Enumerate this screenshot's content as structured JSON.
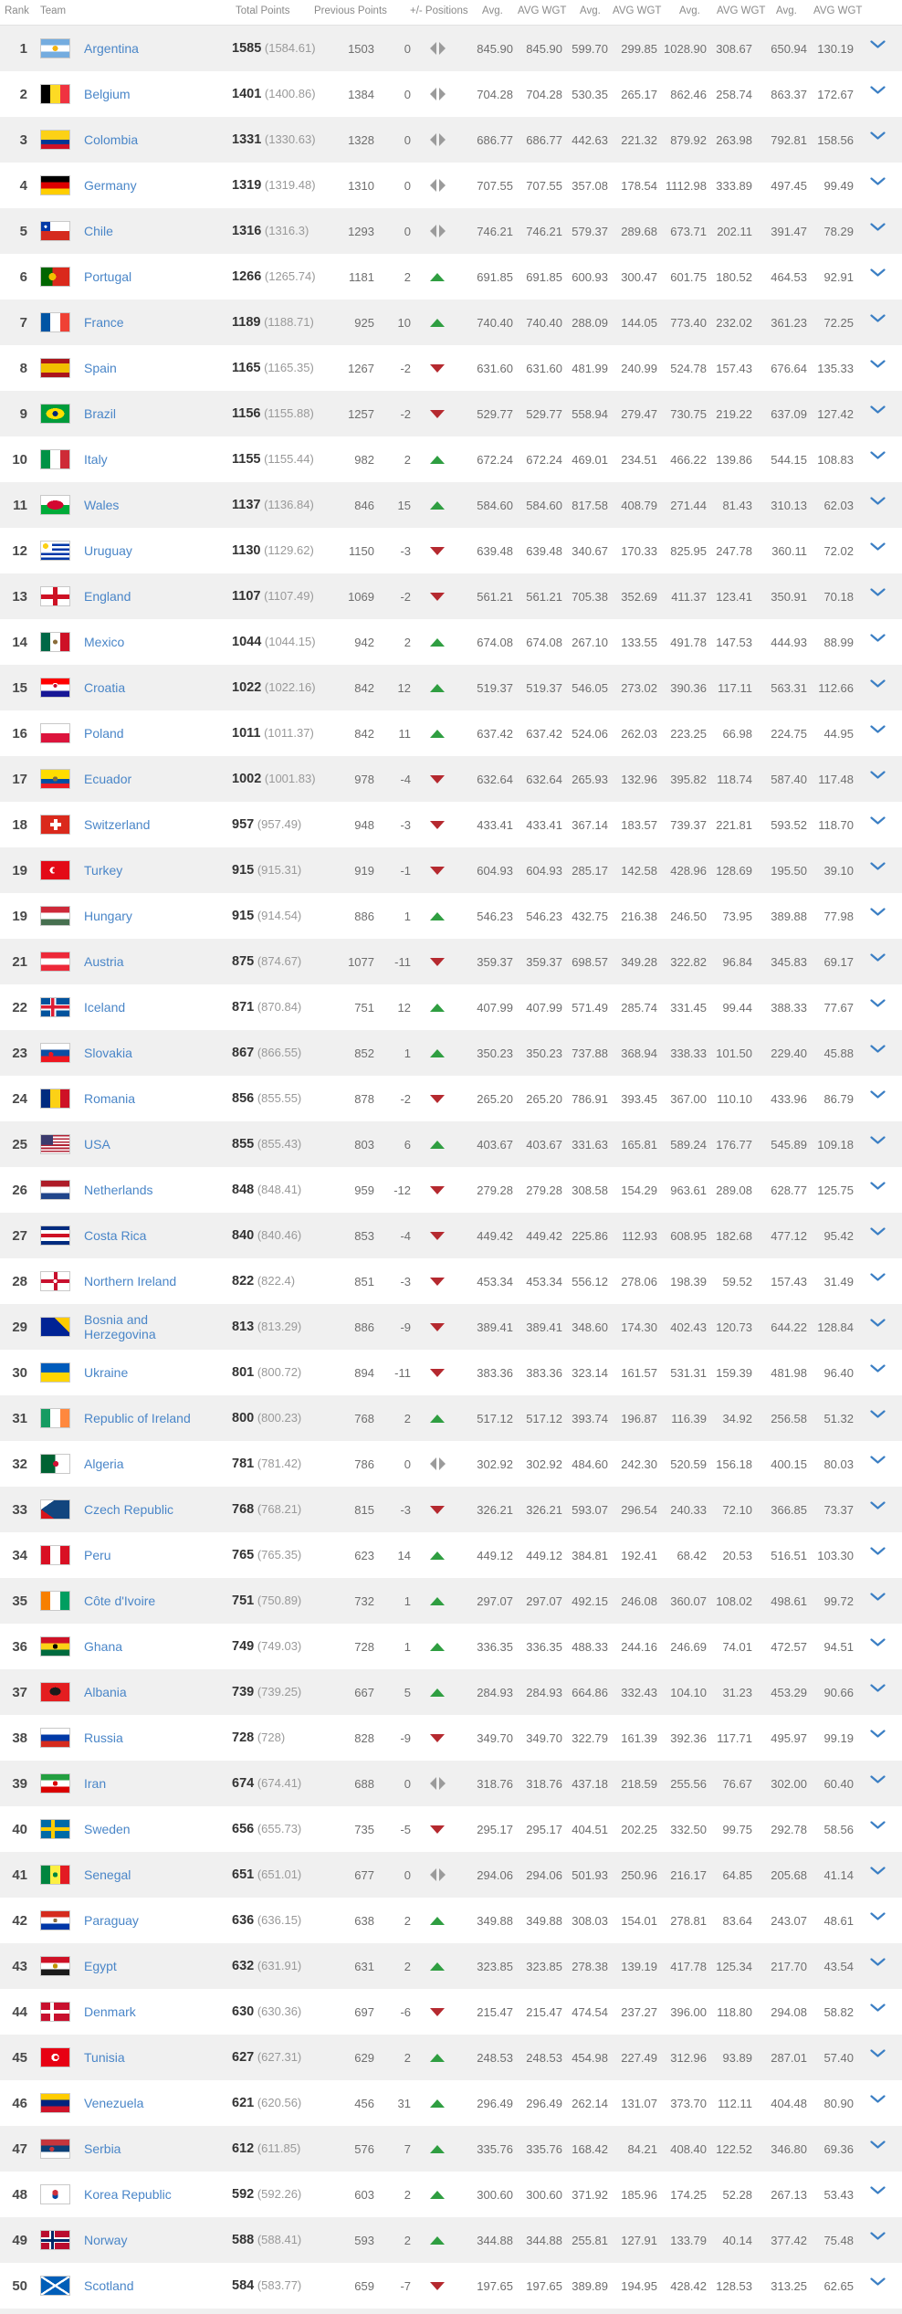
{
  "header": {
    "rank": "Rank",
    "team": "Team",
    "total_points": "Total Points",
    "previous_points": "Previous Points",
    "positions": "+/- Positions",
    "stat_columns": [
      "Avg.",
      "AVG WGT",
      "Avg.",
      "AVG WGT",
      "Avg.",
      "AVG WGT",
      "Avg.",
      "AVG WGT"
    ]
  },
  "colors": {
    "link_blue": "#4a86c8",
    "up_green": "#2f9e41",
    "down_red": "#b5292f",
    "neutral_grey": "#9b9b9b",
    "chevron_blue": "#3b7fc4",
    "row_alt_bg": "#f0f0f0"
  },
  "rows": [
    {
      "rank": "1",
      "team": "Argentina",
      "total_points": "1585",
      "total_points_average": "(1584.61)",
      "previous_points": "1503",
      "change": "0",
      "trend": "same",
      "stats": [
        "845.90",
        "845.90",
        "599.70",
        "299.85",
        "1028.90",
        "308.67",
        "650.94",
        "130.19"
      ]
    },
    {
      "rank": "2",
      "team": "Belgium",
      "total_points": "1401",
      "total_points_average": "(1400.86)",
      "previous_points": "1384",
      "change": "0",
      "trend": "same",
      "stats": [
        "704.28",
        "704.28",
        "530.35",
        "265.17",
        "862.46",
        "258.74",
        "863.37",
        "172.67"
      ]
    },
    {
      "rank": "3",
      "team": "Colombia",
      "total_points": "1331",
      "total_points_average": "(1330.63)",
      "previous_points": "1328",
      "change": "0",
      "trend": "same",
      "stats": [
        "686.77",
        "686.77",
        "442.63",
        "221.32",
        "879.92",
        "263.98",
        "792.81",
        "158.56"
      ]
    },
    {
      "rank": "4",
      "team": "Germany",
      "total_points": "1319",
      "total_points_average": "(1319.48)",
      "previous_points": "1310",
      "change": "0",
      "trend": "same",
      "stats": [
        "707.55",
        "707.55",
        "357.08",
        "178.54",
        "1112.98",
        "333.89",
        "497.45",
        "99.49"
      ]
    },
    {
      "rank": "5",
      "team": "Chile",
      "total_points": "1316",
      "total_points_average": "(1316.3)",
      "previous_points": "1293",
      "change": "0",
      "trend": "same",
      "stats": [
        "746.21",
        "746.21",
        "579.37",
        "289.68",
        "673.71",
        "202.11",
        "391.47",
        "78.29"
      ]
    },
    {
      "rank": "6",
      "team": "Portugal",
      "total_points": "1266",
      "total_points_average": "(1265.74)",
      "previous_points": "1181",
      "change": "2",
      "trend": "up",
      "stats": [
        "691.85",
        "691.85",
        "600.93",
        "300.47",
        "601.75",
        "180.52",
        "464.53",
        "92.91"
      ]
    },
    {
      "rank": "7",
      "team": "France",
      "total_points": "1189",
      "total_points_average": "(1188.71)",
      "previous_points": "925",
      "change": "10",
      "trend": "up",
      "stats": [
        "740.40",
        "740.40",
        "288.09",
        "144.05",
        "773.40",
        "232.02",
        "361.23",
        "72.25"
      ]
    },
    {
      "rank": "8",
      "team": "Spain",
      "total_points": "1165",
      "total_points_average": "(1165.35)",
      "previous_points": "1267",
      "change": "-2",
      "trend": "down",
      "stats": [
        "631.60",
        "631.60",
        "481.99",
        "240.99",
        "524.78",
        "157.43",
        "676.64",
        "135.33"
      ]
    },
    {
      "rank": "9",
      "team": "Brazil",
      "total_points": "1156",
      "total_points_average": "(1155.88)",
      "previous_points": "1257",
      "change": "-2",
      "trend": "down",
      "stats": [
        "529.77",
        "529.77",
        "558.94",
        "279.47",
        "730.75",
        "219.22",
        "637.09",
        "127.42"
      ]
    },
    {
      "rank": "10",
      "team": "Italy",
      "total_points": "1155",
      "total_points_average": "(1155.44)",
      "previous_points": "982",
      "change": "2",
      "trend": "up",
      "stats": [
        "672.24",
        "672.24",
        "469.01",
        "234.51",
        "466.22",
        "139.86",
        "544.15",
        "108.83"
      ]
    },
    {
      "rank": "11",
      "team": "Wales",
      "total_points": "1137",
      "total_points_average": "(1136.84)",
      "previous_points": "846",
      "change": "15",
      "trend": "up",
      "stats": [
        "584.60",
        "584.60",
        "817.58",
        "408.79",
        "271.44",
        "81.43",
        "310.13",
        "62.03"
      ]
    },
    {
      "rank": "12",
      "team": "Uruguay",
      "total_points": "1130",
      "total_points_average": "(1129.62)",
      "previous_points": "1150",
      "change": "-3",
      "trend": "down",
      "stats": [
        "639.48",
        "639.48",
        "340.67",
        "170.33",
        "825.95",
        "247.78",
        "360.11",
        "72.02"
      ]
    },
    {
      "rank": "13",
      "team": "England",
      "total_points": "1107",
      "total_points_average": "(1107.49)",
      "previous_points": "1069",
      "change": "-2",
      "trend": "down",
      "stats": [
        "561.21",
        "561.21",
        "705.38",
        "352.69",
        "411.37",
        "123.41",
        "350.91",
        "70.18"
      ]
    },
    {
      "rank": "14",
      "team": "Mexico",
      "total_points": "1044",
      "total_points_average": "(1044.15)",
      "previous_points": "942",
      "change": "2",
      "trend": "up",
      "stats": [
        "674.08",
        "674.08",
        "267.10",
        "133.55",
        "491.78",
        "147.53",
        "444.93",
        "88.99"
      ]
    },
    {
      "rank": "15",
      "team": "Croatia",
      "total_points": "1022",
      "total_points_average": "(1022.16)",
      "previous_points": "842",
      "change": "12",
      "trend": "up",
      "stats": [
        "519.37",
        "519.37",
        "546.05",
        "273.02",
        "390.36",
        "117.11",
        "563.31",
        "112.66"
      ]
    },
    {
      "rank": "16",
      "team": "Poland",
      "total_points": "1011",
      "total_points_average": "(1011.37)",
      "previous_points": "842",
      "change": "11",
      "trend": "up",
      "stats": [
        "637.42",
        "637.42",
        "524.06",
        "262.03",
        "223.25",
        "66.98",
        "224.75",
        "44.95"
      ]
    },
    {
      "rank": "17",
      "team": "Ecuador",
      "total_points": "1002",
      "total_points_average": "(1001.83)",
      "previous_points": "978",
      "change": "-4",
      "trend": "down",
      "stats": [
        "632.64",
        "632.64",
        "265.93",
        "132.96",
        "395.82",
        "118.74",
        "587.40",
        "117.48"
      ]
    },
    {
      "rank": "18",
      "team": "Switzerland",
      "total_points": "957",
      "total_points_average": "(957.49)",
      "previous_points": "948",
      "change": "-3",
      "trend": "down",
      "stats": [
        "433.41",
        "433.41",
        "367.14",
        "183.57",
        "739.37",
        "221.81",
        "593.52",
        "118.70"
      ]
    },
    {
      "rank": "19",
      "team": "Turkey",
      "total_points": "915",
      "total_points_average": "(915.31)",
      "previous_points": "919",
      "change": "-1",
      "trend": "down",
      "stats": [
        "604.93",
        "604.93",
        "285.17",
        "142.58",
        "428.96",
        "128.69",
        "195.50",
        "39.10"
      ]
    },
    {
      "rank": "19",
      "team": "Hungary",
      "total_points": "915",
      "total_points_average": "(914.54)",
      "previous_points": "886",
      "change": "1",
      "trend": "up",
      "stats": [
        "546.23",
        "546.23",
        "432.75",
        "216.38",
        "246.50",
        "73.95",
        "389.88",
        "77.98"
      ]
    },
    {
      "rank": "21",
      "team": "Austria",
      "total_points": "875",
      "total_points_average": "(874.67)",
      "previous_points": "1077",
      "change": "-11",
      "trend": "down",
      "stats": [
        "359.37",
        "359.37",
        "698.57",
        "349.28",
        "322.82",
        "96.84",
        "345.83",
        "69.17"
      ]
    },
    {
      "rank": "22",
      "team": "Iceland",
      "total_points": "871",
      "total_points_average": "(870.84)",
      "previous_points": "751",
      "change": "12",
      "trend": "up",
      "stats": [
        "407.99",
        "407.99",
        "571.49",
        "285.74",
        "331.45",
        "99.44",
        "388.33",
        "77.67"
      ]
    },
    {
      "rank": "23",
      "team": "Slovakia",
      "total_points": "867",
      "total_points_average": "(866.55)",
      "previous_points": "852",
      "change": "1",
      "trend": "up",
      "stats": [
        "350.23",
        "350.23",
        "737.88",
        "368.94",
        "338.33",
        "101.50",
        "229.40",
        "45.88"
      ]
    },
    {
      "rank": "24",
      "team": "Romania",
      "total_points": "856",
      "total_points_average": "(855.55)",
      "previous_points": "878",
      "change": "-2",
      "trend": "down",
      "stats": [
        "265.20",
        "265.20",
        "786.91",
        "393.45",
        "367.00",
        "110.10",
        "433.96",
        "86.79"
      ]
    },
    {
      "rank": "25",
      "team": "USA",
      "total_points": "855",
      "total_points_average": "(855.43)",
      "previous_points": "803",
      "change": "6",
      "trend": "up",
      "stats": [
        "403.67",
        "403.67",
        "331.63",
        "165.81",
        "589.24",
        "176.77",
        "545.89",
        "109.18"
      ]
    },
    {
      "rank": "26",
      "team": "Netherlands",
      "total_points": "848",
      "total_points_average": "(848.41)",
      "previous_points": "959",
      "change": "-12",
      "trend": "down",
      "stats": [
        "279.28",
        "279.28",
        "308.58",
        "154.29",
        "963.61",
        "289.08",
        "628.77",
        "125.75"
      ]
    },
    {
      "rank": "27",
      "team": "Costa Rica",
      "total_points": "840",
      "total_points_average": "(840.46)",
      "previous_points": "853",
      "change": "-4",
      "trend": "down",
      "stats": [
        "449.42",
        "449.42",
        "225.86",
        "112.93",
        "608.95",
        "182.68",
        "477.12",
        "95.42"
      ]
    },
    {
      "rank": "28",
      "team": "Northern Ireland",
      "total_points": "822",
      "total_points_average": "(822.4)",
      "previous_points": "851",
      "change": "-3",
      "trend": "down",
      "stats": [
        "453.34",
        "453.34",
        "556.12",
        "278.06",
        "198.39",
        "59.52",
        "157.43",
        "31.49"
      ]
    },
    {
      "rank": "29",
      "team": "Bosnia and Herzegovina",
      "total_points": "813",
      "total_points_average": "(813.29)",
      "previous_points": "886",
      "change": "-9",
      "trend": "down",
      "stats": [
        "389.41",
        "389.41",
        "348.60",
        "174.30",
        "402.43",
        "120.73",
        "644.22",
        "128.84"
      ]
    },
    {
      "rank": "30",
      "team": "Ukraine",
      "total_points": "801",
      "total_points_average": "(800.72)",
      "previous_points": "894",
      "change": "-11",
      "trend": "down",
      "stats": [
        "383.36",
        "383.36",
        "323.14",
        "161.57",
        "531.31",
        "159.39",
        "481.98",
        "96.40"
      ]
    },
    {
      "rank": "31",
      "team": "Republic of Ireland",
      "total_points": "800",
      "total_points_average": "(800.23)",
      "previous_points": "768",
      "change": "2",
      "trend": "up",
      "stats": [
        "517.12",
        "517.12",
        "393.74",
        "196.87",
        "116.39",
        "34.92",
        "256.58",
        "51.32"
      ]
    },
    {
      "rank": "32",
      "team": "Algeria",
      "total_points": "781",
      "total_points_average": "(781.42)",
      "previous_points": "786",
      "change": "0",
      "trend": "same",
      "stats": [
        "302.92",
        "302.92",
        "484.60",
        "242.30",
        "520.59",
        "156.18",
        "400.15",
        "80.03"
      ]
    },
    {
      "rank": "33",
      "team": "Czech Republic",
      "total_points": "768",
      "total_points_average": "(768.21)",
      "previous_points": "815",
      "change": "-3",
      "trend": "down",
      "stats": [
        "326.21",
        "326.21",
        "593.07",
        "296.54",
        "240.33",
        "72.10",
        "366.85",
        "73.37"
      ]
    },
    {
      "rank": "34",
      "team": "Peru",
      "total_points": "765",
      "total_points_average": "(765.35)",
      "previous_points": "623",
      "change": "14",
      "trend": "up",
      "stats": [
        "449.12",
        "449.12",
        "384.81",
        "192.41",
        "68.42",
        "20.53",
        "516.51",
        "103.30"
      ]
    },
    {
      "rank": "35",
      "team": "Côte d'Ivoire",
      "total_points": "751",
      "total_points_average": "(750.89)",
      "previous_points": "732",
      "change": "1",
      "trend": "up",
      "stats": [
        "297.07",
        "297.07",
        "492.15",
        "246.08",
        "360.07",
        "108.02",
        "498.61",
        "99.72"
      ]
    },
    {
      "rank": "36",
      "team": "Ghana",
      "total_points": "749",
      "total_points_average": "(749.03)",
      "previous_points": "728",
      "change": "1",
      "trend": "up",
      "stats": [
        "336.35",
        "336.35",
        "488.33",
        "244.16",
        "246.69",
        "74.01",
        "472.57",
        "94.51"
      ]
    },
    {
      "rank": "37",
      "team": "Albania",
      "total_points": "739",
      "total_points_average": "(739.25)",
      "previous_points": "667",
      "change": "5",
      "trend": "up",
      "stats": [
        "284.93",
        "284.93",
        "664.86",
        "332.43",
        "104.10",
        "31.23",
        "453.29",
        "90.66"
      ]
    },
    {
      "rank": "38",
      "team": "Russia",
      "total_points": "728",
      "total_points_average": "(728)",
      "previous_points": "828",
      "change": "-9",
      "trend": "down",
      "stats": [
        "349.70",
        "349.70",
        "322.79",
        "161.39",
        "392.36",
        "117.71",
        "495.97",
        "99.19"
      ]
    },
    {
      "rank": "39",
      "team": "Iran",
      "total_points": "674",
      "total_points_average": "(674.41)",
      "previous_points": "688",
      "change": "0",
      "trend": "same",
      "stats": [
        "318.76",
        "318.76",
        "437.18",
        "218.59",
        "255.56",
        "76.67",
        "302.00",
        "60.40"
      ]
    },
    {
      "rank": "40",
      "team": "Sweden",
      "total_points": "656",
      "total_points_average": "(655.73)",
      "previous_points": "735",
      "change": "-5",
      "trend": "down",
      "stats": [
        "295.17",
        "295.17",
        "404.51",
        "202.25",
        "332.50",
        "99.75",
        "292.78",
        "58.56"
      ]
    },
    {
      "rank": "41",
      "team": "Senegal",
      "total_points": "651",
      "total_points_average": "(651.01)",
      "previous_points": "677",
      "change": "0",
      "trend": "same",
      "stats": [
        "294.06",
        "294.06",
        "501.93",
        "250.96",
        "216.17",
        "64.85",
        "205.68",
        "41.14"
      ]
    },
    {
      "rank": "42",
      "team": "Paraguay",
      "total_points": "636",
      "total_points_average": "(636.15)",
      "previous_points": "638",
      "change": "2",
      "trend": "up",
      "stats": [
        "349.88",
        "349.88",
        "308.03",
        "154.01",
        "278.81",
        "83.64",
        "243.07",
        "48.61"
      ]
    },
    {
      "rank": "43",
      "team": "Egypt",
      "total_points": "632",
      "total_points_average": "(631.91)",
      "previous_points": "631",
      "change": "2",
      "trend": "up",
      "stats": [
        "323.85",
        "323.85",
        "278.38",
        "139.19",
        "417.78",
        "125.34",
        "217.70",
        "43.54"
      ]
    },
    {
      "rank": "44",
      "team": "Denmark",
      "total_points": "630",
      "total_points_average": "(630.36)",
      "previous_points": "697",
      "change": "-6",
      "trend": "down",
      "stats": [
        "215.47",
        "215.47",
        "474.54",
        "237.27",
        "396.00",
        "118.80",
        "294.08",
        "58.82"
      ]
    },
    {
      "rank": "45",
      "team": "Tunisia",
      "total_points": "627",
      "total_points_average": "(627.31)",
      "previous_points": "629",
      "change": "2",
      "trend": "up",
      "stats": [
        "248.53",
        "248.53",
        "454.98",
        "227.49",
        "312.96",
        "93.89",
        "287.01",
        "57.40"
      ]
    },
    {
      "rank": "46",
      "team": "Venezuela",
      "total_points": "621",
      "total_points_average": "(620.56)",
      "previous_points": "456",
      "change": "31",
      "trend": "up",
      "stats": [
        "296.49",
        "296.49",
        "262.14",
        "131.07",
        "373.70",
        "112.11",
        "404.48",
        "80.90"
      ]
    },
    {
      "rank": "47",
      "team": "Serbia",
      "total_points": "612",
      "total_points_average": "(611.85)",
      "previous_points": "576",
      "change": "7",
      "trend": "up",
      "stats": [
        "335.76",
        "335.76",
        "168.42",
        "84.21",
        "408.40",
        "122.52",
        "346.80",
        "69.36"
      ]
    },
    {
      "rank": "48",
      "team": "Korea Republic",
      "total_points": "592",
      "total_points_average": "(592.26)",
      "previous_points": "603",
      "change": "2",
      "trend": "up",
      "stats": [
        "300.60",
        "300.60",
        "371.92",
        "185.96",
        "174.25",
        "52.28",
        "267.13",
        "53.43"
      ]
    },
    {
      "rank": "49",
      "team": "Norway",
      "total_points": "588",
      "total_points_average": "(588.41)",
      "previous_points": "593",
      "change": "2",
      "trend": "up",
      "stats": [
        "344.88",
        "344.88",
        "255.81",
        "127.91",
        "133.79",
        "40.14",
        "377.42",
        "75.48"
      ]
    },
    {
      "rank": "50",
      "team": "Scotland",
      "total_points": "584",
      "total_points_average": "(583.77)",
      "previous_points": "659",
      "change": "-7",
      "trend": "down",
      "stats": [
        "197.65",
        "197.65",
        "389.89",
        "194.95",
        "428.42",
        "128.53",
        "313.25",
        "62.65"
      ]
    }
  ]
}
